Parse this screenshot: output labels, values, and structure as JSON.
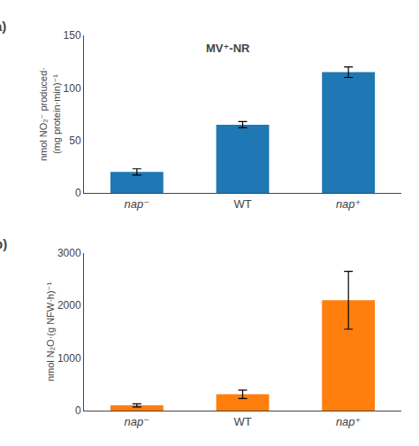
{
  "chart_data": [
    {
      "type": "bar",
      "title": "(a)",
      "categories": [
        "nap⁻",
        "WT",
        "nap⁺"
      ],
      "values": [
        20,
        65,
        115
      ],
      "errors": [
        3,
        3,
        5
      ],
      "ylabel": "nmol NO₂⁻ produced·\n(mg protein·min)⁻¹",
      "annotation": "MV⁺-NR",
      "ylim": [
        0,
        150
      ],
      "yticks": [
        0,
        50,
        100,
        150
      ],
      "grid": false
    },
    {
      "type": "bar",
      "title": "(b)",
      "categories": [
        "nap⁻",
        "WT",
        "nap⁺"
      ],
      "values": [
        100,
        310,
        2100
      ],
      "errors": [
        30,
        80,
        550
      ],
      "ylabel": "nmol N₂O·(g NFW·h)⁻¹",
      "ylim": [
        0,
        3000
      ],
      "yticks": [
        0,
        1000,
        2000,
        3000
      ],
      "grid": false
    }
  ]
}
